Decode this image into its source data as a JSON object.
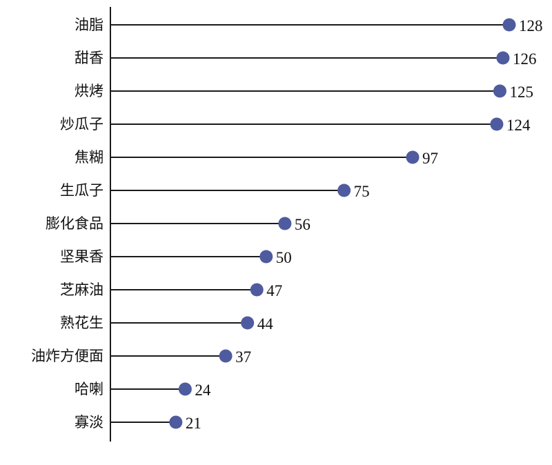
{
  "chart_data": {
    "type": "lollipop",
    "orientation": "horizontal",
    "categories": [
      "油脂",
      "甜香",
      "烘烤",
      "炒瓜子",
      "焦糊",
      "生瓜子",
      "膨化食品",
      "坚果香",
      "芝麻油",
      "熟花生",
      "油炸方便面",
      "哈喇",
      "寡淡"
    ],
    "values": [
      128,
      126,
      125,
      124,
      97,
      75,
      56,
      50,
      47,
      44,
      37,
      24,
      21
    ],
    "data_labels": [
      "128",
      "126",
      "125",
      "124",
      "97",
      "75",
      "56",
      "50",
      "47",
      "44",
      "37",
      "24",
      "21"
    ],
    "xlim": [
      0,
      128
    ],
    "grid": false,
    "legend": "none",
    "colors": {
      "marker": "#4f5b9f",
      "stem": "#1a1a1a"
    }
  }
}
